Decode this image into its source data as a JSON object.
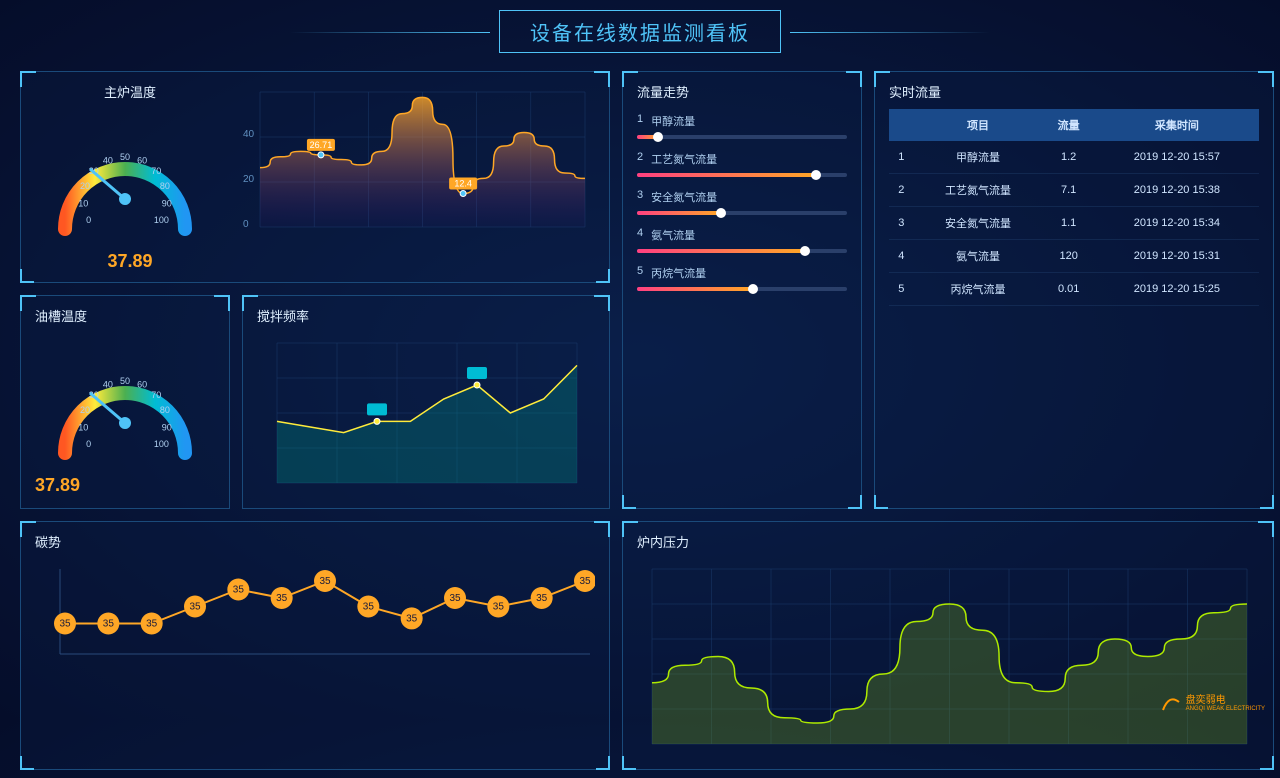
{
  "header": {
    "title": "设备在线数据监测看板"
  },
  "main_temp": {
    "title": "主炉温度",
    "gauge": {
      "value": "37.89",
      "min": 0,
      "max": 100,
      "ticks": [
        0,
        10,
        20,
        30,
        40,
        50,
        60,
        70,
        80,
        90,
        100
      ]
    },
    "chart": {
      "type": "area",
      "yticks": [
        0,
        20,
        40
      ],
      "values": [
        22,
        26,
        28,
        26.71,
        25,
        23,
        28,
        42,
        48,
        38,
        12.4,
        18,
        30,
        35,
        30,
        20,
        18
      ],
      "markers": [
        {
          "i": 3,
          "label": "26.71"
        },
        {
          "i": 10,
          "label": "12.4"
        }
      ],
      "stroke": "#ffa726",
      "fill_top": "#ffa726",
      "fill_bottom": "rgba(74,20,140,0.1)",
      "grid": "#1a3a6a"
    }
  },
  "oil_temp": {
    "title": "油槽温度",
    "gauge": {
      "value": "37.89",
      "min": 0,
      "max": 100
    }
  },
  "mix_freq": {
    "title": "搅拌频率",
    "chart": {
      "type": "area",
      "values": [
        22,
        20,
        18,
        22,
        22,
        30,
        35,
        25,
        30,
        42
      ],
      "markers_i": [
        3,
        6
      ],
      "stroke": "#ffeb3b",
      "fill": "rgba(0,150,136,0.3)"
    }
  },
  "carbon": {
    "title": "碳势",
    "chart": {
      "type": "line",
      "values": [
        15,
        15,
        15,
        25,
        35,
        30,
        40,
        25,
        18,
        30,
        25,
        30,
        40
      ],
      "point_label": "35",
      "stroke": "#ffa726",
      "point_fill": "#ffa726"
    }
  },
  "flow_trend": {
    "title": "流量走势",
    "items": [
      {
        "n": "1",
        "label": "甲醇流量",
        "pct": 10
      },
      {
        "n": "2",
        "label": "工艺氮气流量",
        "pct": 85
      },
      {
        "n": "3",
        "label": "安全氮气流量",
        "pct": 40
      },
      {
        "n": "4",
        "label": "氨气流量",
        "pct": 80
      },
      {
        "n": "5",
        "label": "丙烷气流量",
        "pct": 55
      }
    ]
  },
  "realtime": {
    "title": "实时流量",
    "columns": [
      "",
      "项目",
      "流量",
      "采集时间"
    ],
    "rows": [
      [
        "1",
        "甲醇流量",
        "1.2",
        "2019 12-20 15:57"
      ],
      [
        "2",
        "工艺氮气流量",
        "7.1",
        "2019 12-20 15:38"
      ],
      [
        "3",
        "安全氮气流量",
        "1.1",
        "2019 12-20 15:34"
      ],
      [
        "4",
        "氨气流量",
        "120",
        "2019 12-20 15:31"
      ],
      [
        "5",
        "丙烷气流量",
        "0.01",
        "2019 12-20 15:25"
      ]
    ]
  },
  "pressure": {
    "title": "炉内压力",
    "chart": {
      "type": "area",
      "values": [
        35,
        45,
        50,
        32,
        15,
        12,
        20,
        40,
        70,
        80,
        65,
        35,
        30,
        45,
        60,
        50,
        60,
        75,
        80
      ],
      "stroke": "#aeea00",
      "fill": "rgba(105,150,30,0.35)",
      "grid": "#1a3a6a"
    }
  },
  "logo": {
    "text": "盘奕弱电",
    "sub": "ANGQI WEAK ELECTRICITY"
  },
  "colors": {
    "cyan": "#4fc3f7",
    "orange": "#ffa726",
    "pink": "#ff4081",
    "green": "#aeea00"
  }
}
